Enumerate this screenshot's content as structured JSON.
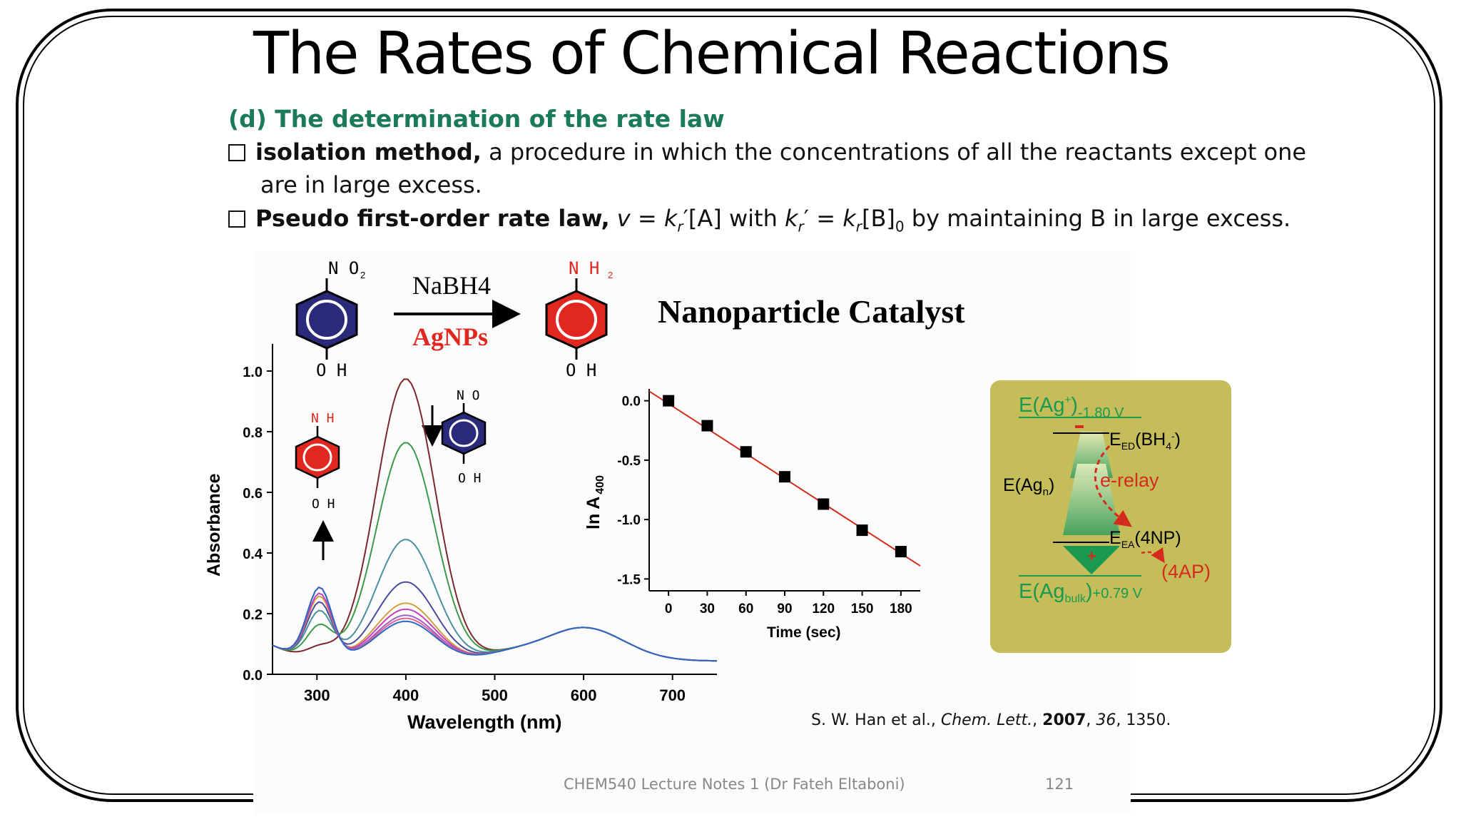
{
  "slide": {
    "title": "The Rates of Chemical Reactions",
    "subheading": "(d) The determination of the rate law",
    "bullet1_bold": "isolation method,",
    "bullet1_rest": " a procedure in which the concentrations of all the reactants except one",
    "bullet1_cont": "are in large excess.",
    "bullet2_bold": "Pseudo first-order rate law,",
    "bullet2_rest": "v = kr′[A] with kr′ = kr[B]0 by maintaining B in large excess."
  },
  "scheme": {
    "reactant_top": "N O",
    "reactant_sub": "2",
    "reactant_bottom": "O H",
    "product_top": "N H",
    "product_sub": "2",
    "product_bottom": "O H",
    "reagent": "NaBH4",
    "catalyst": "AgNPs",
    "heading": "Nanoparticle Catalyst"
  },
  "colors": {
    "nitro": "#2a2a7a",
    "amino": "#e02820",
    "accent_green": "#1a7a5a",
    "energy_bg": "#c4bd5a"
  },
  "chart_data": [
    {
      "type": "line",
      "xlabel": "Wavelength (nm)",
      "ylabel": "Absorbance",
      "xlim": [
        250,
        750
      ],
      "ylim": [
        0,
        1.0
      ],
      "xticks": [
        "300",
        "400",
        "500",
        "600",
        "700"
      ],
      "yticks": [
        "0.0",
        "0.2",
        "0.4",
        "0.6",
        "0.8",
        "1.0"
      ],
      "series_peak400": [
        0.93,
        0.72,
        0.4,
        0.26,
        0.19,
        0.17,
        0.15,
        0.14,
        0.13
      ],
      "series_peak300": [
        0.15,
        0.22,
        0.27,
        0.3,
        0.32,
        0.33,
        0.35,
        0.35,
        0.35
      ],
      "inset_labels": {
        "amino_top": "N H",
        "amino_bottom": "O H",
        "nitro_top": "N O",
        "nitro_bottom": "O H"
      }
    },
    {
      "type": "scatter",
      "xlabel": "Time (sec)",
      "ylabel": "ln A 400",
      "xlim": [
        -15,
        195
      ],
      "ylim": [
        -1.6,
        0.1
      ],
      "xticks": [
        "0",
        "30",
        "60",
        "90",
        "120",
        "150",
        "180"
      ],
      "yticks": [
        "0.0",
        "-0.5",
        "-1.0",
        "-1.5"
      ],
      "x": [
        0,
        30,
        60,
        90,
        120,
        150,
        180
      ],
      "y": [
        0.0,
        -0.21,
        -0.43,
        -0.64,
        -0.87,
        -1.09,
        -1.27
      ],
      "fit": {
        "x": [
          -15,
          195
        ],
        "y": [
          0.08,
          -1.39
        ]
      }
    }
  ],
  "energy_diagram": {
    "top_label": "E(Ag+)-1.80 V",
    "ed_label": "EED(BH4-)",
    "agn_label": "E(Agn)",
    "relay_label": "e-relay",
    "ea_label": "EEA(4NP)",
    "product_label": "(4AP)",
    "bottom_label": "E(Agbulk)+0.79 V"
  },
  "citation": {
    "authors": "S. W. Han et al., ",
    "journal": "Chem. Lett.",
    "year": "2007",
    "volume": "36",
    "pages": ", 1350."
  },
  "footer": {
    "course": "CHEM540 Lecture Notes 1 (Dr Fateh Eltaboni)",
    "page": "121"
  }
}
